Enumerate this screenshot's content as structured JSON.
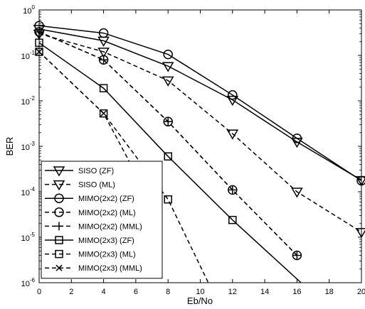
{
  "chart_data": {
    "type": "line",
    "xlabel": "Eb/No",
    "ylabel": "BER",
    "xlim": [
      0,
      20
    ],
    "ylim": [
      1e-06,
      1
    ],
    "yscale": "log",
    "xticks": [
      0,
      2,
      4,
      6,
      8,
      10,
      12,
      14,
      16,
      18,
      20
    ],
    "yticks": [
      {
        "value": 1,
        "base": "10",
        "exp": "0"
      },
      {
        "value": 0.1,
        "base": "10",
        "exp": "-1"
      },
      {
        "value": 0.01,
        "base": "10",
        "exp": "-2"
      },
      {
        "value": 0.001,
        "base": "10",
        "exp": "-3"
      },
      {
        "value": 0.0001,
        "base": "10",
        "exp": "-4"
      },
      {
        "value": 1e-05,
        "base": "10",
        "exp": "-5"
      },
      {
        "value": 1e-06,
        "base": "10",
        "exp": "-6"
      }
    ],
    "grid": false,
    "legend_position": "bottom-left",
    "series": [
      {
        "name": "SISO (ZF)",
        "dash": "solid",
        "marker": "triangle-down",
        "x": [
          0,
          4,
          8,
          12,
          16,
          20
        ],
        "values": [
          0.38,
          0.21,
          0.058,
          0.0105,
          0.00125,
          0.00018
        ]
      },
      {
        "name": "SISO (ML)",
        "dash": "dashed",
        "marker": "triangle-down",
        "x": [
          0,
          4,
          8,
          12,
          16,
          20
        ],
        "values": [
          0.3,
          0.12,
          0.028,
          0.0019,
          0.0001,
          1.3e-05
        ]
      },
      {
        "name": "MIMO(2x2) (ZF)",
        "dash": "solid",
        "marker": "circle",
        "x": [
          0,
          4,
          8,
          12,
          16,
          20
        ],
        "values": [
          0.45,
          0.31,
          0.105,
          0.0135,
          0.0015,
          0.000175
        ]
      },
      {
        "name": "MIMO(2x2) (ML)",
        "dash": "dashed",
        "marker": "circle",
        "x": [
          0,
          4,
          8,
          12,
          16
        ],
        "values": [
          0.33,
          0.08,
          0.0035,
          0.00011,
          4e-06
        ]
      },
      {
        "name": "MIMO(2x2) (MML)",
        "dash": "dashed",
        "marker": "plus",
        "x": [
          0,
          4,
          8,
          12,
          16
        ],
        "values": [
          0.33,
          0.08,
          0.0035,
          0.00011,
          4e-06
        ]
      },
      {
        "name": "MIMO(2x3) (ZF)",
        "dash": "solid",
        "marker": "square",
        "x": [
          0,
          4,
          8,
          12,
          16.25
        ],
        "values": [
          0.19,
          0.019,
          0.0006,
          2.4e-05,
          1e-06
        ]
      },
      {
        "name": "MIMO(2x3) (ML)",
        "dash": "dashed",
        "marker": "square",
        "x": [
          0,
          4,
          8,
          10.5
        ],
        "values": [
          0.12,
          0.0053,
          6.8e-05,
          1e-06
        ]
      },
      {
        "name": "MIMO(2x3) (MML)",
        "dash": "dashed",
        "marker": "x",
        "x": [
          0,
          4,
          6.6
        ],
        "values": [
          0.12,
          0.0053,
          0.0001
        ]
      }
    ]
  }
}
